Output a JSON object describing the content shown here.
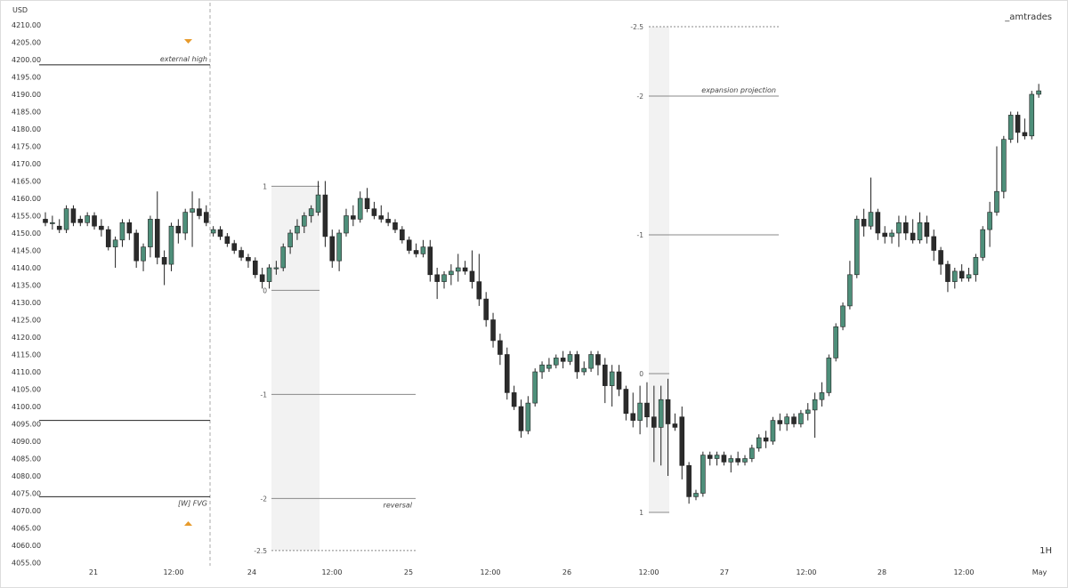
{
  "watermark": "_amtrades",
  "timeframe": "1H",
  "chart_data": {
    "type": "candlestick",
    "currency_label": "USD",
    "ylim": [
      4052,
      4214
    ],
    "yticks": [
      4210,
      4205,
      4200,
      4195,
      4190,
      4185,
      4180,
      4175,
      4170,
      4165,
      4160,
      4155,
      4150,
      4145,
      4140,
      4135,
      4130,
      4125,
      4120,
      4115,
      4110,
      4105,
      4100,
      4095,
      4090,
      4085,
      4080,
      4075,
      4070,
      4065,
      4060,
      4055
    ],
    "xticks": [
      "21",
      "12:00",
      "24",
      "12:00",
      "25",
      "12:00",
      "26",
      "12:00",
      "27",
      "12:00",
      "28",
      "12:00",
      "May"
    ],
    "colors": {
      "up": "#4e8f7a",
      "down": "#2b2b2b",
      "marker": "#e79a2b",
      "band": "#f2f2f2"
    },
    "candles": [
      {
        "o": 4154,
        "h": 4156,
        "l": 4152,
        "c": 4153
      },
      {
        "o": 4153,
        "h": 4155,
        "l": 4151,
        "c": 4153
      },
      {
        "o": 4152,
        "h": 4154,
        "l": 4150,
        "c": 4151
      },
      {
        "o": 4151,
        "h": 4158,
        "l": 4150,
        "c": 4157
      },
      {
        "o": 4157,
        "h": 4158,
        "l": 4152,
        "c": 4153
      },
      {
        "o": 4154,
        "h": 4155,
        "l": 4152,
        "c": 4153
      },
      {
        "o": 4153,
        "h": 4156,
        "l": 4152,
        "c": 4155
      },
      {
        "o": 4155,
        "h": 4156,
        "l": 4151,
        "c": 4152
      },
      {
        "o": 4152,
        "h": 4154,
        "l": 4149,
        "c": 4151
      },
      {
        "o": 4151,
        "h": 4152,
        "l": 4145,
        "c": 4146
      },
      {
        "o": 4146,
        "h": 4149,
        "l": 4140,
        "c": 4148
      },
      {
        "o": 4148,
        "h": 4154,
        "l": 4146,
        "c": 4153
      },
      {
        "o": 4153,
        "h": 4154,
        "l": 4148,
        "c": 4150
      },
      {
        "o": 4150,
        "h": 4151,
        "l": 4140,
        "c": 4142
      },
      {
        "o": 4142,
        "h": 4147,
        "l": 4139,
        "c": 4146
      },
      {
        "o": 4146,
        "h": 4155,
        "l": 4143,
        "c": 4154
      },
      {
        "o": 4154,
        "h": 4162,
        "l": 4141,
        "c": 4143
      },
      {
        "o": 4143,
        "h": 4145,
        "l": 4135,
        "c": 4141
      },
      {
        "o": 4141,
        "h": 4153,
        "l": 4139,
        "c": 4152
      },
      {
        "o": 4152,
        "h": 4154,
        "l": 4147,
        "c": 4150
      },
      {
        "o": 4150,
        "h": 4157,
        "l": 4148,
        "c": 4156
      },
      {
        "o": 4156,
        "h": 4162,
        "l": 4146,
        "c": 4157
      },
      {
        "o": 4157,
        "h": 4160,
        "l": 4154,
        "c": 4155
      },
      {
        "o": 4156,
        "h": 4158,
        "l": 4152,
        "c": 4153
      },
      {
        "o": 4150,
        "h": 4152,
        "l": 4149,
        "c": 4151
      },
      {
        "o": 4151,
        "h": 4152,
        "l": 4148,
        "c": 4149
      },
      {
        "o": 4149,
        "h": 4150,
        "l": 4146,
        "c": 4147
      },
      {
        "o": 4147,
        "h": 4148,
        "l": 4144,
        "c": 4145
      },
      {
        "o": 4145,
        "h": 4146,
        "l": 4142,
        "c": 4143
      },
      {
        "o": 4143,
        "h": 4144,
        "l": 4140,
        "c": 4142
      },
      {
        "o": 4142,
        "h": 4143,
        "l": 4137,
        "c": 4138
      },
      {
        "o": 4138,
        "h": 4140,
        "l": 4134,
        "c": 4136
      },
      {
        "o": 4136,
        "h": 4141,
        "l": 4134,
        "c": 4140
      },
      {
        "o": 4140,
        "h": 4142,
        "l": 4138,
        "c": 4140
      },
      {
        "o": 4140,
        "h": 4147,
        "l": 4139,
        "c": 4146
      },
      {
        "o": 4146,
        "h": 4151,
        "l": 4144,
        "c": 4150
      },
      {
        "o": 4150,
        "h": 4154,
        "l": 4148,
        "c": 4152
      },
      {
        "o": 4152,
        "h": 4156,
        "l": 4150,
        "c": 4155
      },
      {
        "o": 4155,
        "h": 4158,
        "l": 4153,
        "c": 4157
      },
      {
        "o": 4156,
        "h": 4165,
        "l": 4155,
        "c": 4161
      },
      {
        "o": 4161,
        "h": 4165,
        "l": 4146,
        "c": 4149
      },
      {
        "o": 4149,
        "h": 4151,
        "l": 4140,
        "c": 4142
      },
      {
        "o": 4142,
        "h": 4151,
        "l": 4139,
        "c": 4150
      },
      {
        "o": 4150,
        "h": 4157,
        "l": 4149,
        "c": 4155
      },
      {
        "o": 4155,
        "h": 4158,
        "l": 4152,
        "c": 4154
      },
      {
        "o": 4154,
        "h": 4162,
        "l": 4153,
        "c": 4160
      },
      {
        "o": 4160,
        "h": 4163,
        "l": 4156,
        "c": 4157
      },
      {
        "o": 4157,
        "h": 4159,
        "l": 4154,
        "c": 4155
      },
      {
        "o": 4155,
        "h": 4158,
        "l": 4153,
        "c": 4154
      },
      {
        "o": 4154,
        "h": 4156,
        "l": 4152,
        "c": 4153
      },
      {
        "o": 4153,
        "h": 4154,
        "l": 4150,
        "c": 4151
      },
      {
        "o": 4151,
        "h": 4152,
        "l": 4147,
        "c": 4148
      },
      {
        "o": 4148,
        "h": 4149,
        "l": 4144,
        "c": 4145
      },
      {
        "o": 4145,
        "h": 4147,
        "l": 4143,
        "c": 4144
      },
      {
        "o": 4144,
        "h": 4148,
        "l": 4143,
        "c": 4146
      },
      {
        "o": 4146,
        "h": 4148,
        "l": 4136,
        "c": 4138
      },
      {
        "o": 4138,
        "h": 4140,
        "l": 4131,
        "c": 4136
      },
      {
        "o": 4136,
        "h": 4139,
        "l": 4134,
        "c": 4138
      },
      {
        "o": 4138,
        "h": 4141,
        "l": 4135,
        "c": 4139
      },
      {
        "o": 4139,
        "h": 4144,
        "l": 4136,
        "c": 4140
      },
      {
        "o": 4140,
        "h": 4142,
        "l": 4138,
        "c": 4139
      },
      {
        "o": 4139,
        "h": 4145,
        "l": 4134,
        "c": 4136
      },
      {
        "o": 4136,
        "h": 4144,
        "l": 4129,
        "c": 4131
      },
      {
        "o": 4131,
        "h": 4133,
        "l": 4123,
        "c": 4125
      },
      {
        "o": 4125,
        "h": 4127,
        "l": 4117,
        "c": 4119
      },
      {
        "o": 4119,
        "h": 4121,
        "l": 4112,
        "c": 4115
      },
      {
        "o": 4115,
        "h": 4117,
        "l": 4102,
        "c": 4104
      },
      {
        "o": 4104,
        "h": 4106,
        "l": 4099,
        "c": 4100
      },
      {
        "o": 4100,
        "h": 4102,
        "l": 4091,
        "c": 4093
      },
      {
        "o": 4093,
        "h": 4103,
        "l": 4092,
        "c": 4101
      },
      {
        "o": 4101,
        "h": 4111,
        "l": 4100,
        "c": 4110
      },
      {
        "o": 4110,
        "h": 4113,
        "l": 4108,
        "c": 4112
      },
      {
        "o": 4111,
        "h": 4114,
        "l": 4110,
        "c": 4112
      },
      {
        "o": 4112,
        "h": 4115,
        "l": 4111,
        "c": 4114
      },
      {
        "o": 4114,
        "h": 4116,
        "l": 4111,
        "c": 4113
      },
      {
        "o": 4113,
        "h": 4116,
        "l": 4112,
        "c": 4115
      },
      {
        "o": 4115,
        "h": 4116,
        "l": 4108,
        "c": 4110
      },
      {
        "o": 4110,
        "h": 4113,
        "l": 4109,
        "c": 4111
      },
      {
        "o": 4111,
        "h": 4116,
        "l": 4110,
        "c": 4115
      },
      {
        "o": 4115,
        "h": 4116,
        "l": 4109,
        "c": 4112
      },
      {
        "o": 4112,
        "h": 4114,
        "l": 4101,
        "c": 4106
      },
      {
        "o": 4106,
        "h": 4112,
        "l": 4100,
        "c": 4110
      },
      {
        "o": 4110,
        "h": 4112,
        "l": 4103,
        "c": 4105
      },
      {
        "o": 4105,
        "h": 4106,
        "l": 4096,
        "c": 4098
      },
      {
        "o": 4098,
        "h": 4104,
        "l": 4094,
        "c": 4096
      },
      {
        "o": 4096,
        "h": 4106,
        "l": 4092,
        "c": 4101
      },
      {
        "o": 4101,
        "h": 4107,
        "l": 4094,
        "c": 4097
      },
      {
        "o": 4097,
        "h": 4106,
        "l": 4084,
        "c": 4094
      },
      {
        "o": 4094,
        "h": 4106,
        "l": 4083,
        "c": 4102
      },
      {
        "o": 4102,
        "h": 4108,
        "l": 4080,
        "c": 4095
      },
      {
        "o": 4095,
        "h": 4098,
        "l": 4093,
        "c": 4094
      },
      {
        "o": 4097,
        "h": 4100,
        "l": 4079,
        "c": 4083
      },
      {
        "o": 4083,
        "h": 4084,
        "l": 4072,
        "c": 4074
      },
      {
        "o": 4074,
        "h": 4076,
        "l": 4073,
        "c": 4075
      },
      {
        "o": 4075,
        "h": 4087,
        "l": 4074,
        "c": 4086
      },
      {
        "o": 4086,
        "h": 4087,
        "l": 4083,
        "c": 4085
      },
      {
        "o": 4085,
        "h": 4087,
        "l": 4083,
        "c": 4086
      },
      {
        "o": 4086,
        "h": 4087,
        "l": 4083,
        "c": 4084
      },
      {
        "o": 4084,
        "h": 4086,
        "l": 4081,
        "c": 4085
      },
      {
        "o": 4085,
        "h": 4087,
        "l": 4083,
        "c": 4084
      },
      {
        "o": 4084,
        "h": 4086,
        "l": 4083,
        "c": 4085
      },
      {
        "o": 4085,
        "h": 4089,
        "l": 4084,
        "c": 4088
      },
      {
        "o": 4088,
        "h": 4092,
        "l": 4087,
        "c": 4091
      },
      {
        "o": 4091,
        "h": 4093,
        "l": 4088,
        "c": 4090
      },
      {
        "o": 4090,
        "h": 4097,
        "l": 4089,
        "c": 4096
      },
      {
        "o": 4096,
        "h": 4098,
        "l": 4093,
        "c": 4095
      },
      {
        "o": 4095,
        "h": 4098,
        "l": 4093,
        "c": 4097
      },
      {
        "o": 4097,
        "h": 4098,
        "l": 4094,
        "c": 4095
      },
      {
        "o": 4095,
        "h": 4099,
        "l": 4094,
        "c": 4098
      },
      {
        "o": 4098,
        "h": 4101,
        "l": 4096,
        "c": 4099
      },
      {
        "o": 4099,
        "h": 4104,
        "l": 4091,
        "c": 4102
      },
      {
        "o": 4102,
        "h": 4107,
        "l": 4100,
        "c": 4104
      },
      {
        "o": 4104,
        "h": 4115,
        "l": 4103,
        "c": 4114
      },
      {
        "o": 4114,
        "h": 4124,
        "l": 4113,
        "c": 4123
      },
      {
        "o": 4123,
        "h": 4130,
        "l": 4122,
        "c": 4129
      },
      {
        "o": 4129,
        "h": 4142,
        "l": 4128,
        "c": 4138
      },
      {
        "o": 4138,
        "h": 4155,
        "l": 4137,
        "c": 4154
      },
      {
        "o": 4154,
        "h": 4157,
        "l": 4149,
        "c": 4152
      },
      {
        "o": 4152,
        "h": 4166,
        "l": 4151,
        "c": 4156
      },
      {
        "o": 4156,
        "h": 4157,
        "l": 4148,
        "c": 4150
      },
      {
        "o": 4150,
        "h": 4152,
        "l": 4147,
        "c": 4149
      },
      {
        "o": 4149,
        "h": 4151,
        "l": 4147,
        "c": 4150
      },
      {
        "o": 4150,
        "h": 4155,
        "l": 4146,
        "c": 4153
      },
      {
        "o": 4153,
        "h": 4155,
        "l": 4148,
        "c": 4150
      },
      {
        "o": 4150,
        "h": 4154,
        "l": 4147,
        "c": 4148
      },
      {
        "o": 4148,
        "h": 4156,
        "l": 4147,
        "c": 4153
      },
      {
        "o": 4153,
        "h": 4155,
        "l": 4147,
        "c": 4149
      },
      {
        "o": 4149,
        "h": 4151,
        "l": 4142,
        "c": 4145
      },
      {
        "o": 4145,
        "h": 4146,
        "l": 4138,
        "c": 4141
      },
      {
        "o": 4141,
        "h": 4142,
        "l": 4133,
        "c": 4136
      },
      {
        "o": 4136,
        "h": 4140,
        "l": 4134,
        "c": 4139
      },
      {
        "o": 4139,
        "h": 4141,
        "l": 4136,
        "c": 4137
      },
      {
        "o": 4137,
        "h": 4140,
        "l": 4136,
        "c": 4138
      },
      {
        "o": 4138,
        "h": 4144,
        "l": 4136,
        "c": 4143
      },
      {
        "o": 4143,
        "h": 4152,
        "l": 4142,
        "c": 4151
      },
      {
        "o": 4151,
        "h": 4159,
        "l": 4146,
        "c": 4156
      },
      {
        "o": 4156,
        "h": 4175,
        "l": 4155,
        "c": 4162
      },
      {
        "o": 4162,
        "h": 4178,
        "l": 4160,
        "c": 4177
      },
      {
        "o": 4177,
        "h": 4185,
        "l": 4176,
        "c": 4184
      },
      {
        "o": 4184,
        "h": 4185,
        "l": 4176,
        "c": 4179
      },
      {
        "o": 4179,
        "h": 4183,
        "l": 4177,
        "c": 4178
      },
      {
        "o": 4178,
        "h": 4191,
        "l": 4177,
        "c": 4190
      },
      {
        "o": 4190,
        "h": 4193,
        "l": 4189,
        "c": 4191
      }
    ],
    "annotations": [
      {
        "label": "external high",
        "price": 4198.5
      },
      {
        "label": "[W] FVG",
        "price": 4074
      }
    ],
    "fib_left": {
      "levels": [
        {
          "label": "1",
          "price": 4163.5
        },
        {
          "label": "0",
          "price": 4133.5
        },
        {
          "label": "-1",
          "price": 4103.5
        },
        {
          "label": "-2",
          "price": 4073.5
        },
        {
          "label": "-2.5",
          "price": 4058.5
        }
      ],
      "note": "reversal",
      "note_level": "-2"
    },
    "fib_right": {
      "levels": [
        {
          "label": "-2.5",
          "price": 4209.5
        },
        {
          "label": "-2",
          "price": 4189.5
        },
        {
          "label": "-1",
          "price": 4149.5
        },
        {
          "label": "0",
          "price": 4109.5
        },
        {
          "label": "1",
          "price": 4069.5
        }
      ],
      "note": "expansion projection",
      "note_level": "-2"
    }
  }
}
